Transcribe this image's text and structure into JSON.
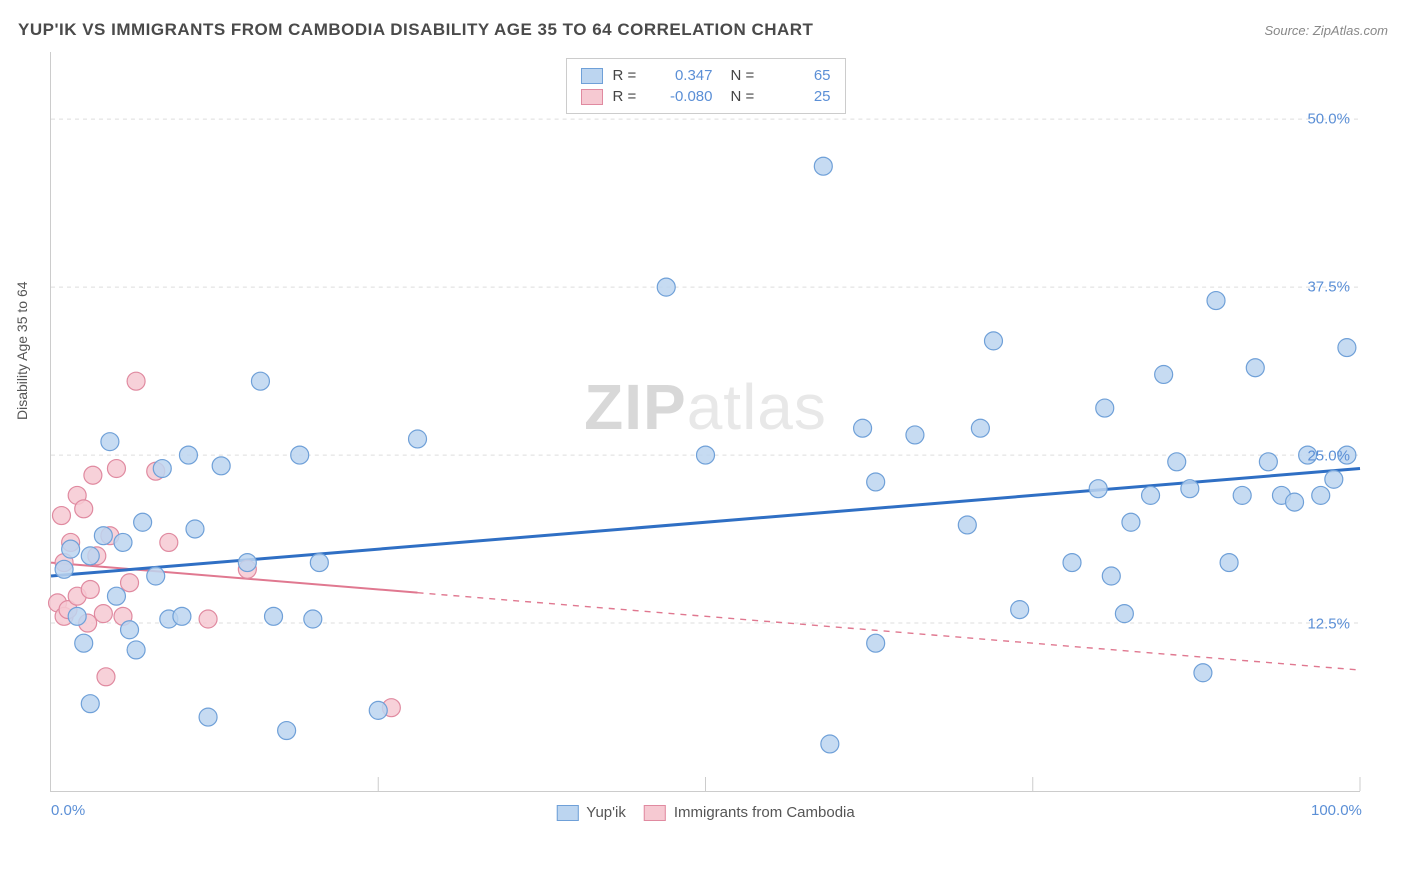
{
  "title": "YUP'IK VS IMMIGRANTS FROM CAMBODIA DISABILITY AGE 35 TO 64 CORRELATION CHART",
  "source": "Source: ZipAtlas.com",
  "ylabel": "Disability Age 35 to 64",
  "watermark_bold": "ZIP",
  "watermark_light": "atlas",
  "chart": {
    "type": "scatter",
    "xlim": [
      0,
      100
    ],
    "ylim": [
      0,
      55
    ],
    "yticks": [
      {
        "v": 12.5,
        "label": "12.5%"
      },
      {
        "v": 25.0,
        "label": "25.0%"
      },
      {
        "v": 37.5,
        "label": "37.5%"
      },
      {
        "v": 50.0,
        "label": "50.0%"
      }
    ],
    "xticks": [
      {
        "v": 0,
        "label": "0.0%"
      },
      {
        "v": 100,
        "label": "100.0%"
      }
    ],
    "xtick_marks": [
      25,
      50,
      75,
      100
    ],
    "grid_color": "#dddddd",
    "axis_color": "#cccccc",
    "tick_color_blue": "#5b8fd6",
    "series": [
      {
        "name": "Yup'ik",
        "color_fill": "#bcd5f0",
        "color_stroke": "#6fa0d8",
        "line_color": "#2f6fc4",
        "line_width": 3,
        "line_dash": "none",
        "r_value": "0.347",
        "n_value": "65",
        "trend": {
          "x1": 0,
          "y1": 16.0,
          "x2": 100,
          "y2": 24.0
        },
        "trend_dash_from_x": 100,
        "marker_r": 9,
        "points": [
          [
            1,
            16.5
          ],
          [
            1.5,
            18
          ],
          [
            2,
            13
          ],
          [
            2.5,
            11
          ],
          [
            3,
            17.5
          ],
          [
            3,
            6.5
          ],
          [
            4,
            19
          ],
          [
            4.5,
            26
          ],
          [
            5,
            14.5
          ],
          [
            5.5,
            18.5
          ],
          [
            6,
            12
          ],
          [
            6.5,
            10.5
          ],
          [
            7,
            20
          ],
          [
            8,
            16
          ],
          [
            8.5,
            24
          ],
          [
            9,
            12.8
          ],
          [
            10,
            13
          ],
          [
            10.5,
            25
          ],
          [
            11,
            19.5
          ],
          [
            12,
            5.5
          ],
          [
            13,
            24.2
          ],
          [
            15,
            17
          ],
          [
            16,
            30.5
          ],
          [
            17,
            13
          ],
          [
            18,
            4.5
          ],
          [
            19,
            25
          ],
          [
            20,
            12.8
          ],
          [
            20.5,
            17
          ],
          [
            25,
            6
          ],
          [
            28,
            26.2
          ],
          [
            47,
            37.5
          ],
          [
            50,
            25
          ],
          [
            59,
            46.5
          ],
          [
            59.5,
            3.5
          ],
          [
            62,
            27
          ],
          [
            63,
            23
          ],
          [
            63,
            11
          ],
          [
            66,
            26.5
          ],
          [
            70,
            19.8
          ],
          [
            71,
            27
          ],
          [
            72,
            33.5
          ],
          [
            74,
            13.5
          ],
          [
            78,
            17
          ],
          [
            80,
            22.5
          ],
          [
            80.5,
            28.5
          ],
          [
            81,
            16
          ],
          [
            82,
            13.2
          ],
          [
            82.5,
            20
          ],
          [
            84,
            22
          ],
          [
            85,
            31
          ],
          [
            86,
            24.5
          ],
          [
            87,
            22.5
          ],
          [
            88,
            8.8
          ],
          [
            89,
            36.5
          ],
          [
            90,
            17
          ],
          [
            91,
            22
          ],
          [
            92,
            31.5
          ],
          [
            93,
            24.5
          ],
          [
            94,
            22
          ],
          [
            95,
            21.5
          ],
          [
            96,
            25
          ],
          [
            97,
            22
          ],
          [
            98,
            23.2
          ],
          [
            99,
            25
          ],
          [
            99,
            33
          ]
        ]
      },
      {
        "name": "Immigrants from Cambodia",
        "color_fill": "#f6c9d2",
        "color_stroke": "#e08aa0",
        "line_color": "#e07890",
        "line_width": 2,
        "line_dash": "dashed_after",
        "r_value": "-0.080",
        "n_value": "25",
        "trend": {
          "x1": 0,
          "y1": 17.0,
          "x2": 100,
          "y2": 9.0
        },
        "trend_dash_from_x": 28,
        "marker_r": 9,
        "points": [
          [
            0.5,
            14
          ],
          [
            0.8,
            20.5
          ],
          [
            1,
            13
          ],
          [
            1,
            17
          ],
          [
            1.3,
            13.5
          ],
          [
            1.5,
            18.5
          ],
          [
            2,
            22
          ],
          [
            2,
            14.5
          ],
          [
            2.5,
            21
          ],
          [
            2.8,
            12.5
          ],
          [
            3,
            15
          ],
          [
            3.2,
            23.5
          ],
          [
            3.5,
            17.5
          ],
          [
            4,
            13.2
          ],
          [
            4.2,
            8.5
          ],
          [
            4.5,
            19
          ],
          [
            5,
            24
          ],
          [
            5.5,
            13
          ],
          [
            6,
            15.5
          ],
          [
            6.5,
            30.5
          ],
          [
            8,
            23.8
          ],
          [
            9,
            18.5
          ],
          [
            12,
            12.8
          ],
          [
            15,
            16.5
          ],
          [
            26,
            6.2
          ]
        ]
      }
    ]
  },
  "legend_bottom": [
    {
      "label": "Yup'ik",
      "fill": "#bcd5f0",
      "stroke": "#6fa0d8"
    },
    {
      "label": "Immigrants from Cambodia",
      "fill": "#f6c9d2",
      "stroke": "#e08aa0"
    }
  ]
}
